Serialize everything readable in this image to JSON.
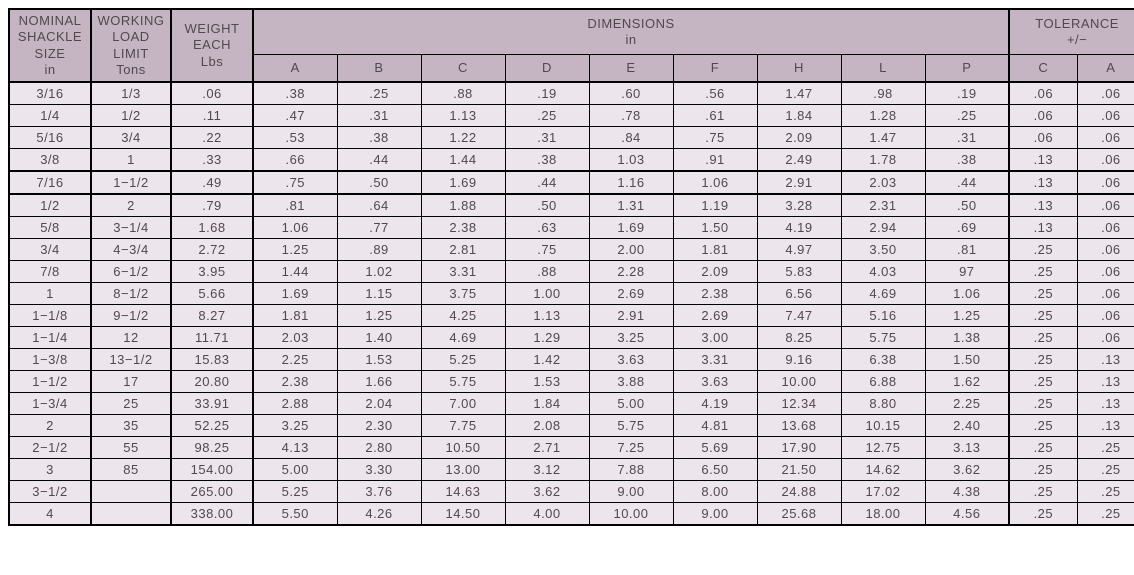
{
  "headers": {
    "size": "NOMINAL\nSHACKLE\nSIZE\nin",
    "wll": "WORKING\nLOAD\nLIMIT\nTons",
    "wt": "WEIGHT\nEACH\nLbs",
    "dims": "DIMENSIONS\nin",
    "tol": "TOLERANCE\n+/−",
    "cols": [
      "A",
      "B",
      "C",
      "D",
      "E",
      "F",
      "H",
      "L",
      "P"
    ],
    "tolcols": [
      "C",
      "A"
    ]
  },
  "rows": [
    {
      "size": "3/16",
      "wll": "1/3",
      "wt": ".06",
      "A": ".38",
      "B": ".25",
      "C": ".88",
      "D": ".19",
      "E": ".60",
      "F": ".56",
      "H": "1.47",
      "L": ".98",
      "P": ".19",
      "tC": ".06",
      "tA": ".06",
      "grp": 0
    },
    {
      "size": "1/4",
      "wll": "1/2",
      "wt": ".11",
      "A": ".47",
      "B": ".31",
      "C": "1.13",
      "D": ".25",
      "E": ".78",
      "F": ".61",
      "H": "1.84",
      "L": "1.28",
      "P": ".25",
      "tC": ".06",
      "tA": ".06",
      "grp": 0
    },
    {
      "size": "5/16",
      "wll": "3/4",
      "wt": ".22",
      "A": ".53",
      "B": ".38",
      "C": "1.22",
      "D": ".31",
      "E": ".84",
      "F": ".75",
      "H": "2.09",
      "L": "1.47",
      "P": ".31",
      "tC": ".06",
      "tA": ".06",
      "grp": 0
    },
    {
      "size": "3/8",
      "wll": "1",
      "wt": ".33",
      "A": ".66",
      "B": ".44",
      "C": "1.44",
      "D": ".38",
      "E": "1.03",
      "F": ".91",
      "H": "2.49",
      "L": "1.78",
      "P": ".38",
      "tC": ".13",
      "tA": ".06",
      "grp": 0
    },
    {
      "size": "7/16",
      "wll": "1−1/2",
      "wt": ".49",
      "A": ".75",
      "B": ".50",
      "C": "1.69",
      "D": ".44",
      "E": "1.16",
      "F": "1.06",
      "H": "2.91",
      "L": "2.03",
      "P": ".44",
      "tC": ".13",
      "tA": ".06",
      "grp": 1
    },
    {
      "size": "1/2",
      "wll": "2",
      "wt": ".79",
      "A": ".81",
      "B": ".64",
      "C": "1.88",
      "D": ".50",
      "E": "1.31",
      "F": "1.19",
      "H": "3.28",
      "L": "2.31",
      "P": ".50",
      "tC": ".13",
      "tA": ".06",
      "grp": 2
    },
    {
      "size": "5/8",
      "wll": "3−1/4",
      "wt": "1.68",
      "A": "1.06",
      "B": ".77",
      "C": "2.38",
      "D": ".63",
      "E": "1.69",
      "F": "1.50",
      "H": "4.19",
      "L": "2.94",
      "P": ".69",
      "tC": ".13",
      "tA": ".06",
      "grp": 2
    },
    {
      "size": "3/4",
      "wll": "4−3/4",
      "wt": "2.72",
      "A": "1.25",
      "B": ".89",
      "C": "2.81",
      "D": ".75",
      "E": "2.00",
      "F": "1.81",
      "H": "4.97",
      "L": "3.50",
      "P": ".81",
      "tC": ".25",
      "tA": ".06",
      "grp": 2
    },
    {
      "size": "7/8",
      "wll": "6−1/2",
      "wt": "3.95",
      "A": "1.44",
      "B": "1.02",
      "C": "3.31",
      "D": ".88",
      "E": "2.28",
      "F": "2.09",
      "H": "5.83",
      "L": "4.03",
      "P": "97",
      "tC": ".25",
      "tA": ".06",
      "grp": 2
    },
    {
      "size": "1",
      "wll": "8−1/2",
      "wt": "5.66",
      "A": "1.69",
      "B": "1.15",
      "C": "3.75",
      "D": "1.00",
      "E": "2.69",
      "F": "2.38",
      "H": "6.56",
      "L": "4.69",
      "P": "1.06",
      "tC": ".25",
      "tA": ".06",
      "grp": 2
    },
    {
      "size": "1−1/8",
      "wll": "9−1/2",
      "wt": "8.27",
      "A": "1.81",
      "B": "1.25",
      "C": "4.25",
      "D": "1.13",
      "E": "2.91",
      "F": "2.69",
      "H": "7.47",
      "L": "5.16",
      "P": "1.25",
      "tC": ".25",
      "tA": ".06",
      "grp": 2
    },
    {
      "size": "1−1/4",
      "wll": "12",
      "wt": "11.71",
      "A": "2.03",
      "B": "1.40",
      "C": "4.69",
      "D": "1.29",
      "E": "3.25",
      "F": "3.00",
      "H": "8.25",
      "L": "5.75",
      "P": "1.38",
      "tC": ".25",
      "tA": ".06",
      "grp": 2
    },
    {
      "size": "1−3/8",
      "wll": "13−1/2",
      "wt": "15.83",
      "A": "2.25",
      "B": "1.53",
      "C": "5.25",
      "D": "1.42",
      "E": "3.63",
      "F": "3.31",
      "H": "9.16",
      "L": "6.38",
      "P": "1.50",
      "tC": ".25",
      "tA": ".13",
      "grp": 2
    },
    {
      "size": "1−1/2",
      "wll": "17",
      "wt": "20.80",
      "A": "2.38",
      "B": "1.66",
      "C": "5.75",
      "D": "1.53",
      "E": "3.88",
      "F": "3.63",
      "H": "10.00",
      "L": "6.88",
      "P": "1.62",
      "tC": ".25",
      "tA": ".13",
      "grp": 2
    },
    {
      "size": "1−3/4",
      "wll": "25",
      "wt": "33.91",
      "A": "2.88",
      "B": "2.04",
      "C": "7.00",
      "D": "1.84",
      "E": "5.00",
      "F": "4.19",
      "H": "12.34",
      "L": "8.80",
      "P": "2.25",
      "tC": ".25",
      "tA": ".13",
      "grp": 2
    },
    {
      "size": "2",
      "wll": "35",
      "wt": "52.25",
      "A": "3.25",
      "B": "2.30",
      "C": "7.75",
      "D": "2.08",
      "E": "5.75",
      "F": "4.81",
      "H": "13.68",
      "L": "10.15",
      "P": "2.40",
      "tC": ".25",
      "tA": ".13",
      "grp": 2
    },
    {
      "size": "2−1/2",
      "wll": "55",
      "wt": "98.25",
      "A": "4.13",
      "B": "2.80",
      "C": "10.50",
      "D": "2.71",
      "E": "7.25",
      "F": "5.69",
      "H": "17.90",
      "L": "12.75",
      "P": "3.13",
      "tC": ".25",
      "tA": ".25",
      "grp": 2
    },
    {
      "size": "3",
      "wll": "85",
      "wt": "154.00",
      "A": "5.00",
      "B": "3.30",
      "C": "13.00",
      "D": "3.12",
      "E": "7.88",
      "F": "6.50",
      "H": "21.50",
      "L": "14.62",
      "P": "3.62",
      "tC": ".25",
      "tA": ".25",
      "grp": 2
    },
    {
      "size": "3−1/2",
      "wll": "",
      "wt": "265.00",
      "A": "5.25",
      "B": "3.76",
      "C": "14.63",
      "D": "3.62",
      "E": "9.00",
      "F": "8.00",
      "H": "24.88",
      "L": "17.02",
      "P": "4.38",
      "tC": ".25",
      "tA": ".25",
      "grp": 2
    },
    {
      "size": "4",
      "wll": "",
      "wt": "338.00",
      "A": "5.50",
      "B": "4.26",
      "C": "14.50",
      "D": "4.00",
      "E": "10.00",
      "F": "9.00",
      "H": "25.68",
      "L": "18.00",
      "P": "4.56",
      "tC": ".25",
      "tA": ".25",
      "grp": 2
    }
  ],
  "style": {
    "header_bg": "#c5b4c1",
    "row_bg": "#ece5eb",
    "text_color": "#524850",
    "font_size_pt": 10,
    "group_boundaries_after_row": [
      3,
      4
    ]
  }
}
